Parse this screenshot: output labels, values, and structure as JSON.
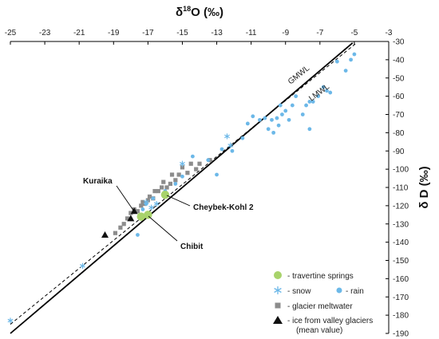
{
  "chart_data": {
    "type": "scatter",
    "x_axis": {
      "title_base": "δ",
      "title_sup": "18",
      "title_rest": "O (‰)",
      "range": [
        -25,
        -3
      ],
      "ticks": [
        -25,
        -23,
        -21,
        -19,
        -17,
        -15,
        -13,
        -11,
        -9,
        -7,
        -5,
        -3
      ],
      "position": "top"
    },
    "y_axis": {
      "title_base": "δ",
      "title_rest": " D (‰)",
      "range": [
        -190,
        -30
      ],
      "ticks": [
        -30,
        -40,
        -50,
        -60,
        -70,
        -80,
        -90,
        -100,
        -110,
        -120,
        -130,
        -140,
        -150,
        -160,
        -170,
        -180,
        -190
      ],
      "position": "right"
    },
    "lines": [
      {
        "name": "GMWL",
        "x": [
          -25,
          -5.1
        ],
        "y": [
          -190,
          -30.8
        ],
        "style": "solid",
        "color": "#000000"
      },
      {
        "name": "LMWL",
        "x": [
          -25,
          -4.9
        ],
        "y": [
          -185,
          -31
        ],
        "style": "dashed",
        "color": "#000000"
      }
    ],
    "series": [
      {
        "name": "rain",
        "marker": "circle",
        "color": "#6cb8e8",
        "points": [
          [
            -5.0,
            -37
          ],
          [
            -5.2,
            -40
          ],
          [
            -5.5,
            -46
          ],
          [
            -6.0,
            -41
          ],
          [
            -6.4,
            -58
          ],
          [
            -6.6,
            -57
          ],
          [
            -6.8,
            -55
          ],
          [
            -7.1,
            -60
          ],
          [
            -7.4,
            -63
          ],
          [
            -7.6,
            -63
          ],
          [
            -7.8,
            -65
          ],
          [
            -7.6,
            -78
          ],
          [
            -8.0,
            -70
          ],
          [
            -8.4,
            -60
          ],
          [
            -8.6,
            -65
          ],
          [
            -8.8,
            -73
          ],
          [
            -9.0,
            -68
          ],
          [
            -9.2,
            -70
          ],
          [
            -9.3,
            -65
          ],
          [
            -9.4,
            -76
          ],
          [
            -9.5,
            -72
          ],
          [
            -9.7,
            -80
          ],
          [
            -9.8,
            -73
          ],
          [
            -10.0,
            -78
          ],
          [
            -10.2,
            -72
          ],
          [
            -10.5,
            -73
          ],
          [
            -10.9,
            -71
          ],
          [
            -11.2,
            -75
          ],
          [
            -11.5,
            -83
          ],
          [
            -12.1,
            -90
          ],
          [
            -12.7,
            -89
          ],
          [
            -13.0,
            -103
          ],
          [
            -13.5,
            -95
          ],
          [
            -14.4,
            -93
          ],
          [
            -15.0,
            -104
          ],
          [
            -15.4,
            -108
          ],
          [
            -16.0,
            -112
          ],
          [
            -16.7,
            -116
          ],
          [
            -17.1,
            -119
          ],
          [
            -17.3,
            -122
          ],
          [
            -17.6,
            -136
          ]
        ]
      },
      {
        "name": "snow",
        "marker": "star",
        "color": "#6cb8e8",
        "points": [
          [
            -12.4,
            -82
          ],
          [
            -12.2,
            -87
          ],
          [
            -15.0,
            -97
          ],
          [
            -16.5,
            -119
          ],
          [
            -16.8,
            -121
          ],
          [
            -17.1,
            -118
          ],
          [
            -20.8,
            -153
          ],
          [
            -25.0,
            -183
          ]
        ]
      },
      {
        "name": "glacier meltwater",
        "marker": "square",
        "color": "#8c8c8c",
        "points": [
          [
            -13.4,
            -95
          ],
          [
            -14.0,
            -97
          ],
          [
            -14.2,
            -100
          ],
          [
            -14.5,
            -97
          ],
          [
            -14.7,
            -102
          ],
          [
            -15.0,
            -99
          ],
          [
            -15.2,
            -103
          ],
          [
            -15.4,
            -106
          ],
          [
            -15.6,
            -103
          ],
          [
            -15.7,
            -108
          ],
          [
            -15.9,
            -110
          ],
          [
            -16.1,
            -107
          ],
          [
            -16.2,
            -110
          ],
          [
            -16.4,
            -112
          ],
          [
            -16.6,
            -112
          ],
          [
            -16.7,
            -116
          ],
          [
            -16.9,
            -115
          ],
          [
            -17.0,
            -117
          ],
          [
            -17.2,
            -119
          ],
          [
            -17.3,
            -118
          ],
          [
            -17.4,
            -120
          ],
          [
            -17.6,
            -123
          ],
          [
            -17.8,
            -122
          ],
          [
            -18.0,
            -124
          ],
          [
            -18.2,
            -127
          ],
          [
            -18.4,
            -130
          ],
          [
            -18.6,
            -132
          ],
          [
            -18.9,
            -135
          ]
        ]
      },
      {
        "name": "travertine springs",
        "marker": "big-circle",
        "color": "#a8d36b",
        "points": [
          [
            -16.0,
            -114
          ],
          [
            -17.4,
            -126
          ],
          [
            -17.0,
            -125
          ]
        ]
      },
      {
        "name": "ice from valley glaciers",
        "marker": "triangle",
        "color": "#111111",
        "points": [
          [
            -19.5,
            -136
          ],
          [
            -17.8,
            -123
          ],
          [
            -18.0,
            -127
          ]
        ]
      }
    ],
    "line_labels": [
      "GMWL",
      "LMWL"
    ],
    "annotations": [
      {
        "text": "Kuraika",
        "target": [
          -17.6,
          -126
        ]
      },
      {
        "text": "Cheybek-Kohl 2",
        "target": [
          -16.0,
          -114
        ]
      },
      {
        "text": "Chibit",
        "target": [
          -17.0,
          -125
        ]
      }
    ],
    "legend": {
      "placement": "bottom-right",
      "entries": [
        {
          "marker": "big-circle",
          "color": "#a8d36b",
          "text": "- travertine springs"
        },
        {
          "marker": "star",
          "color": "#6cb8e8",
          "text": "- snow"
        },
        {
          "marker": "circle",
          "color": "#6cb8e8",
          "text": "- rain"
        },
        {
          "marker": "square",
          "color": "#8c8c8c",
          "text": "- glacier meltwater"
        },
        {
          "marker": "triangle",
          "color": "#111111",
          "text": "- ice from valley glaciers",
          "text2": "(mean value)"
        }
      ]
    },
    "grid": false
  }
}
